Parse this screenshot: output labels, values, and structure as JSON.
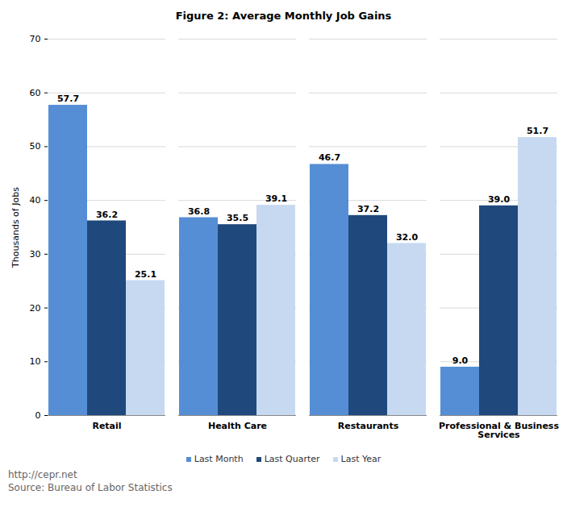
{
  "chart_data": {
    "type": "bar",
    "title": "Figure 2: Average Monthly Job Gains",
    "y_label": "Thousands of Jobs",
    "categories": [
      "Retail",
      "Health Care",
      "Restaurants",
      "Professional & Business Services"
    ],
    "series": [
      {
        "name": "Last Month",
        "color": "#558ed5",
        "values": [
          57.7,
          36.8,
          46.7,
          9.0
        ],
        "value_labels": [
          "57.7",
          "36.8",
          "46.7",
          "9.0"
        ]
      },
      {
        "name": "Last Quarter",
        "color": "#1f497d",
        "values": [
          36.2,
          35.5,
          37.2,
          39.0
        ],
        "value_labels": [
          "36.2",
          "35.5",
          "37.2",
          "39.0"
        ]
      },
      {
        "name": "Last Year",
        "color": "#c6d9f1",
        "values": [
          25.1,
          39.1,
          32.0,
          51.7
        ],
        "value_labels": [
          "25.1",
          "39.1",
          "32.0",
          "51.7"
        ]
      }
    ],
    "ylim": [
      0,
      70
    ],
    "yticks": [
      0,
      10,
      20,
      30,
      40,
      50,
      60,
      70
    ],
    "grid": true,
    "data_labels": true,
    "legend": "bottom",
    "url": "http://cepr.net",
    "source": "Source: Bureau of Labor Statistics"
  }
}
